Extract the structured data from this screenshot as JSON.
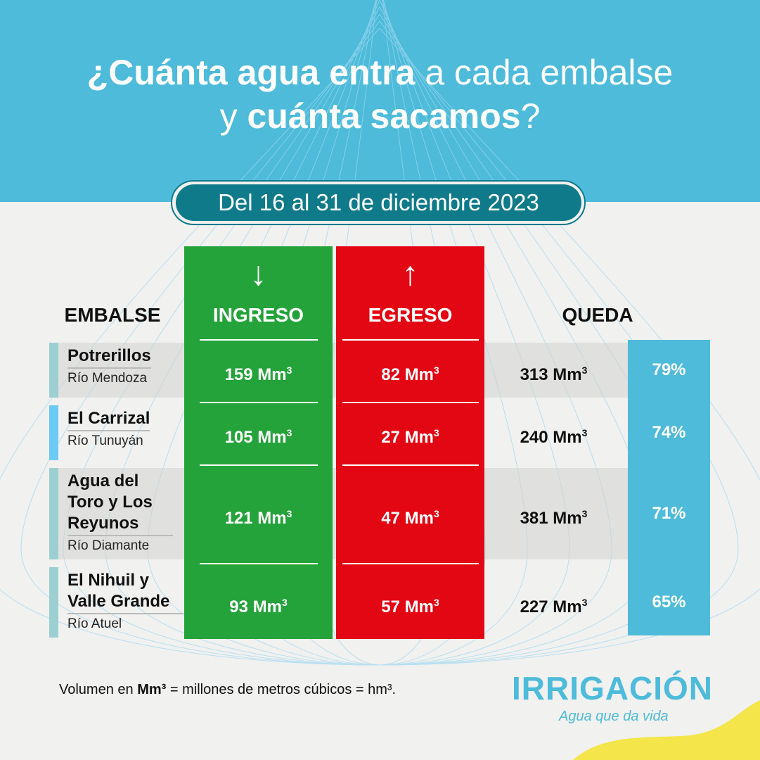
{
  "title": {
    "part1_bold": "¿Cuánta agua entra",
    "part2": " a cada embalse",
    "part3": "y ",
    "part4_bold": "cuánta sacamos",
    "part5": "?"
  },
  "period": "Del 16 al 31 de diciembre 2023",
  "headers": {
    "embalse": "EMBALSE",
    "ingreso": "INGRESO",
    "egreso": "EGRESO",
    "queda": "QUEDA"
  },
  "unit": "Mm",
  "unit_exp": "3",
  "colors": {
    "header": "#4dbbd9",
    "ingreso": "#24a33a",
    "egreso": "#e30613",
    "queda": "#4dbbd9",
    "pill": "#0f7a8a"
  },
  "chart_data": {
    "type": "table",
    "columns": [
      "EMBALSE",
      "INGRESO",
      "EGRESO",
      "QUEDA",
      ""
    ],
    "rows": [
      {
        "embalse": "Potrerillos",
        "rio": "Río Mendoza",
        "ingreso": "159",
        "egreso": "82",
        "queda": "313",
        "pct": "79%"
      },
      {
        "embalse": "El Carrizal",
        "rio": "Río Tunuyán",
        "ingreso": "105",
        "egreso": "27",
        "queda": "240",
        "pct": "74%"
      },
      {
        "embalse": "Agua del Toro y Los Reyunos",
        "rio": "Río Diamante",
        "ingreso": "121",
        "egreso": "47",
        "queda": "381",
        "pct": "71%"
      },
      {
        "embalse": "El Nihuil y Valle Grande",
        "rio": "Río Atuel",
        "ingreso": "93",
        "egreso": "57",
        "queda": "227",
        "pct": "65%"
      }
    ]
  },
  "footnote": {
    "pre": "Volumen en ",
    "bold": "Mm³",
    "post": " = millones de metros cúbicos = hm³."
  },
  "logo": {
    "name": "IRRIGACIÓN",
    "tagline": "Agua que da vida"
  }
}
